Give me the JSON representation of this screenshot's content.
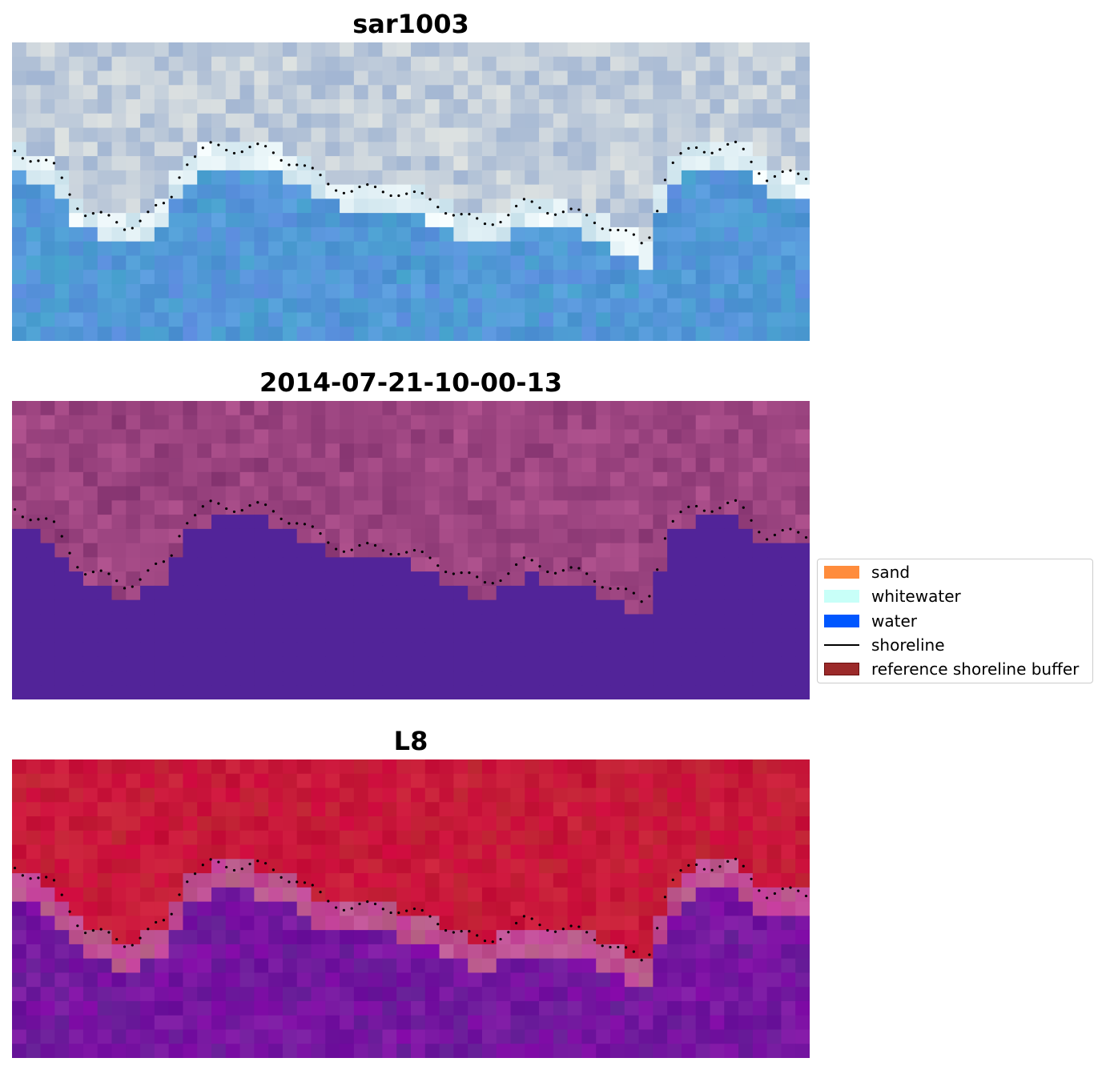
{
  "panels": [
    {
      "title": "sar1003",
      "palette": "rgb"
    },
    {
      "title": "2014-07-21-10-00-13",
      "palette": "classified"
    },
    {
      "title": "L8",
      "palette": "mndwi"
    }
  ],
  "legend": {
    "items": [
      {
        "label": "sand",
        "color": "#ff8c3c",
        "kind": "patch"
      },
      {
        "label": "whitewater",
        "color": "#c8fff8",
        "kind": "patch"
      },
      {
        "label": "water",
        "color": "#0057ff",
        "kind": "patch"
      },
      {
        "label": "shoreline",
        "color": "#000000",
        "kind": "line"
      },
      {
        "label": "reference shoreline buffer",
        "color": "#9b2a2a",
        "kind": "patch"
      }
    ]
  }
}
